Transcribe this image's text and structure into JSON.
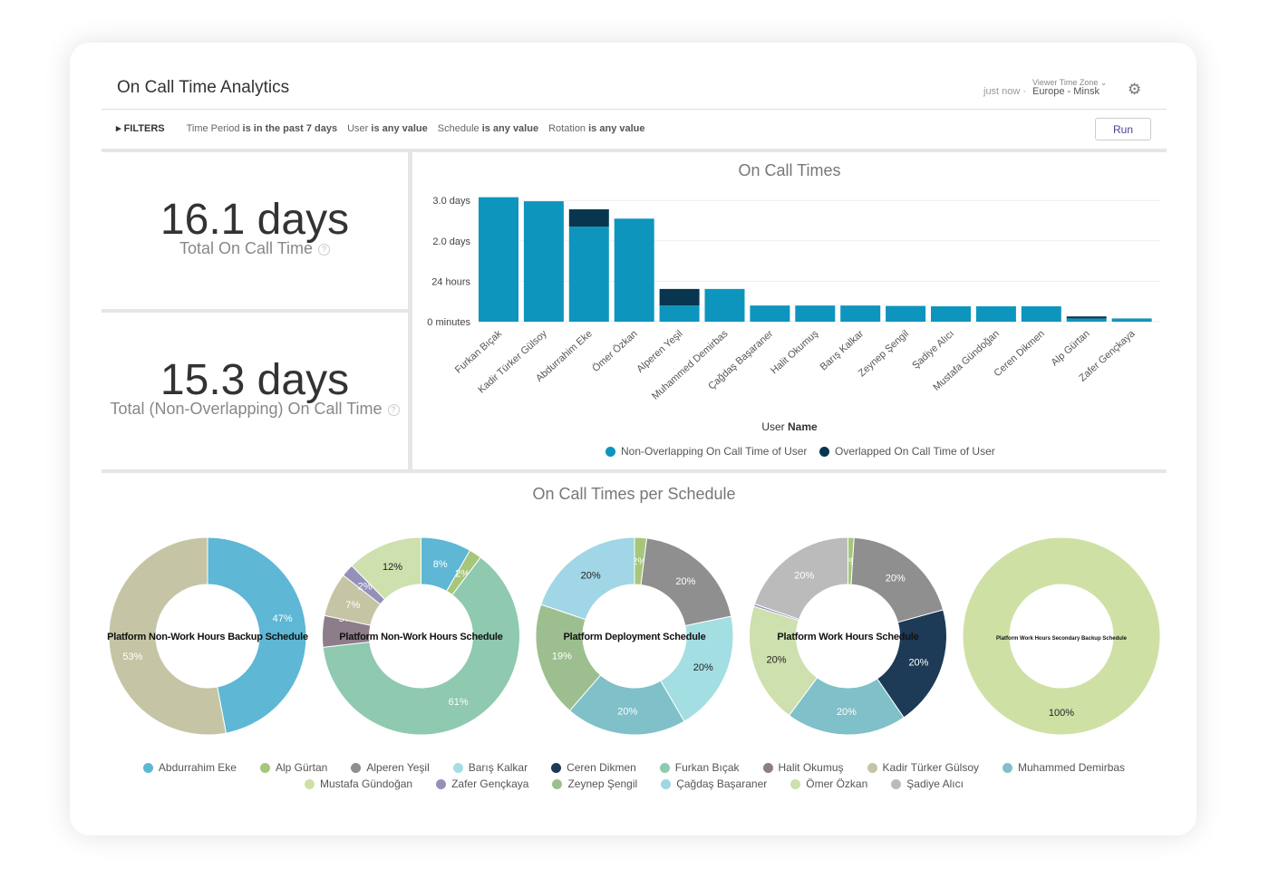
{
  "header": {
    "title": "On Call Time Analytics",
    "updated": "just now",
    "timezone_label": "Viewer Time Zone",
    "timezone": "Europe - Minsk",
    "settings_icon": "gear-icon"
  },
  "filters": {
    "label": "FILTERS",
    "items": [
      {
        "field": "Time Period",
        "value": "is in the past 7 days"
      },
      {
        "field": "User",
        "value": "is any value"
      },
      {
        "field": "Schedule",
        "value": "is any value"
      },
      {
        "field": "Rotation",
        "value": "is any value"
      }
    ],
    "run_label": "Run"
  },
  "kpis": [
    {
      "value": "16.1 days",
      "label": "Total On Call Time"
    },
    {
      "value": "15.3 days",
      "label": "Total (Non-Overlapping) On Call Time"
    }
  ],
  "colors": {
    "non_overlap": "#0e95bd",
    "overlap": "#08364f"
  },
  "chart_data": [
    {
      "type": "bar",
      "stacked": true,
      "title": "On Call Times",
      "xlabel_prefix": "User",
      "xlabel_bold": "Name",
      "ylabel": "",
      "y_ticks": [
        {
          "value": 0,
          "label": "0 minutes"
        },
        {
          "value": 1,
          "label": "24 hours"
        },
        {
          "value": 2,
          "label": "2.0 days"
        },
        {
          "value": 3,
          "label": "3.0 days"
        }
      ],
      "ylim": [
        0,
        3.1
      ],
      "unit": "days",
      "grid": true,
      "legend": "bottom",
      "categories": [
        "Furkan Bıçak",
        "Kadir Türker Gülsoy",
        "Abdurrahim Eke",
        "Ömer Özkan",
        "Alperen Yeşil",
        "Muhammed Demirbas",
        "Çağdaş Başaraner",
        "Halit Okumuş",
        "Barış Kalkar",
        "Zeynep Şengil",
        "Şadiye Alıcı",
        "Mustafa Gündoğan",
        "Ceren Dikmen",
        "Alp Gürtan",
        "Zafer Gençkaya"
      ],
      "series": [
        {
          "name": "Non-Overlapping On Call Time of User",
          "values": [
            3.08,
            2.98,
            2.35,
            2.55,
            0.4,
            0.81,
            0.4,
            0.4,
            0.4,
            0.39,
            0.38,
            0.38,
            0.38,
            0.08,
            0.08
          ]
        },
        {
          "name": "Overlapped On Call Time of User",
          "values": [
            0,
            0,
            0.43,
            0,
            0.41,
            0,
            0,
            0,
            0,
            0,
            0,
            0,
            0,
            0.05,
            0
          ]
        }
      ]
    },
    {
      "type": "pie",
      "title": "On Call Times per Schedule",
      "donuts": [
        {
          "name": "Platform Non-Work Hours Backup Schedule",
          "slices": [
            {
              "user": "Abdurrahim Eke",
              "pct": 47
            },
            {
              "user": "Kadir Türker Gülsoy",
              "pct": 53
            }
          ]
        },
        {
          "name": "Platform Non-Work Hours Schedule",
          "slices": [
            {
              "user": "Abdurrahim Eke",
              "pct": 8
            },
            {
              "user": "Alp Gürtan",
              "pct": 2
            },
            {
              "user": "Furkan Bıçak",
              "pct": 61
            },
            {
              "user": "Halit Okumuş",
              "pct": 5
            },
            {
              "user": "Kadir Türker Gülsoy",
              "pct": 7
            },
            {
              "user": "Zafer Gençkaya",
              "pct": 2
            },
            {
              "user": "Ömer Özkan",
              "pct": 12
            }
          ]
        },
        {
          "name": "Platform Deployment Schedule",
          "slices": [
            {
              "user": "Alp Gürtan",
              "pct": 2
            },
            {
              "user": "Alperen Yeşil",
              "pct": 20
            },
            {
              "user": "Barış Kalkar",
              "pct": 20
            },
            {
              "user": "Muhammed Demirbas",
              "pct": 20
            },
            {
              "user": "Zeynep Şengil",
              "pct": 19
            },
            {
              "user": "Çağdaş Başaraner",
              "pct": 20
            }
          ]
        },
        {
          "name": "Platform Work Hours Schedule",
          "slices": [
            {
              "user": "Alp Gürtan",
              "pct": 1
            },
            {
              "user": "Alperen Yeşil",
              "pct": 20
            },
            {
              "user": "Ceren Dikmen",
              "pct": 20
            },
            {
              "user": "Muhammed Demirbas",
              "pct": 20
            },
            {
              "user": "Ömer Özkan",
              "pct": 20
            },
            {
              "user": "Zafer Gençkaya",
              "pct": 0.4,
              "hidden_label": true
            },
            {
              "user": "Şadiye Alıcı",
              "pct": 20
            }
          ]
        },
        {
          "name": "Platform Work Hours Secondary Backup Schedule",
          "slices": [
            {
              "user": "Mustafa Gündoğan",
              "pct": 100
            }
          ]
        }
      ],
      "legend": [
        {
          "name": "Abdurrahim Eke",
          "color": "#5db7d5"
        },
        {
          "name": "Alp Gürtan",
          "color": "#a6c77a"
        },
        {
          "name": "Alperen Yeşil",
          "color": "#8f8f8f"
        },
        {
          "name": "Barış Kalkar",
          "color": "#a3dee2"
        },
        {
          "name": "Ceren Dikmen",
          "color": "#1d3a57"
        },
        {
          "name": "Furkan Bıçak",
          "color": "#8ec9b0"
        },
        {
          "name": "Halit Okumuş",
          "color": "#8d7d8a"
        },
        {
          "name": "Kadir Türker Gülsoy",
          "color": "#c5c5a5"
        },
        {
          "name": "Muhammed Demirbas",
          "color": "#7fc0c9"
        },
        {
          "name": "Mustafa Gündoğan",
          "color": "#cfe0a5"
        },
        {
          "name": "Zafer Gençkaya",
          "color": "#9391b9"
        },
        {
          "name": "Zeynep Şengil",
          "color": "#9dbf8f"
        },
        {
          "name": "Çağdaş Başaraner",
          "color": "#a0d6e5"
        },
        {
          "name": "Ömer Özkan",
          "color": "#cde0ad"
        },
        {
          "name": "Şadiye Alıcı",
          "color": "#bbbbbb"
        }
      ]
    }
  ]
}
